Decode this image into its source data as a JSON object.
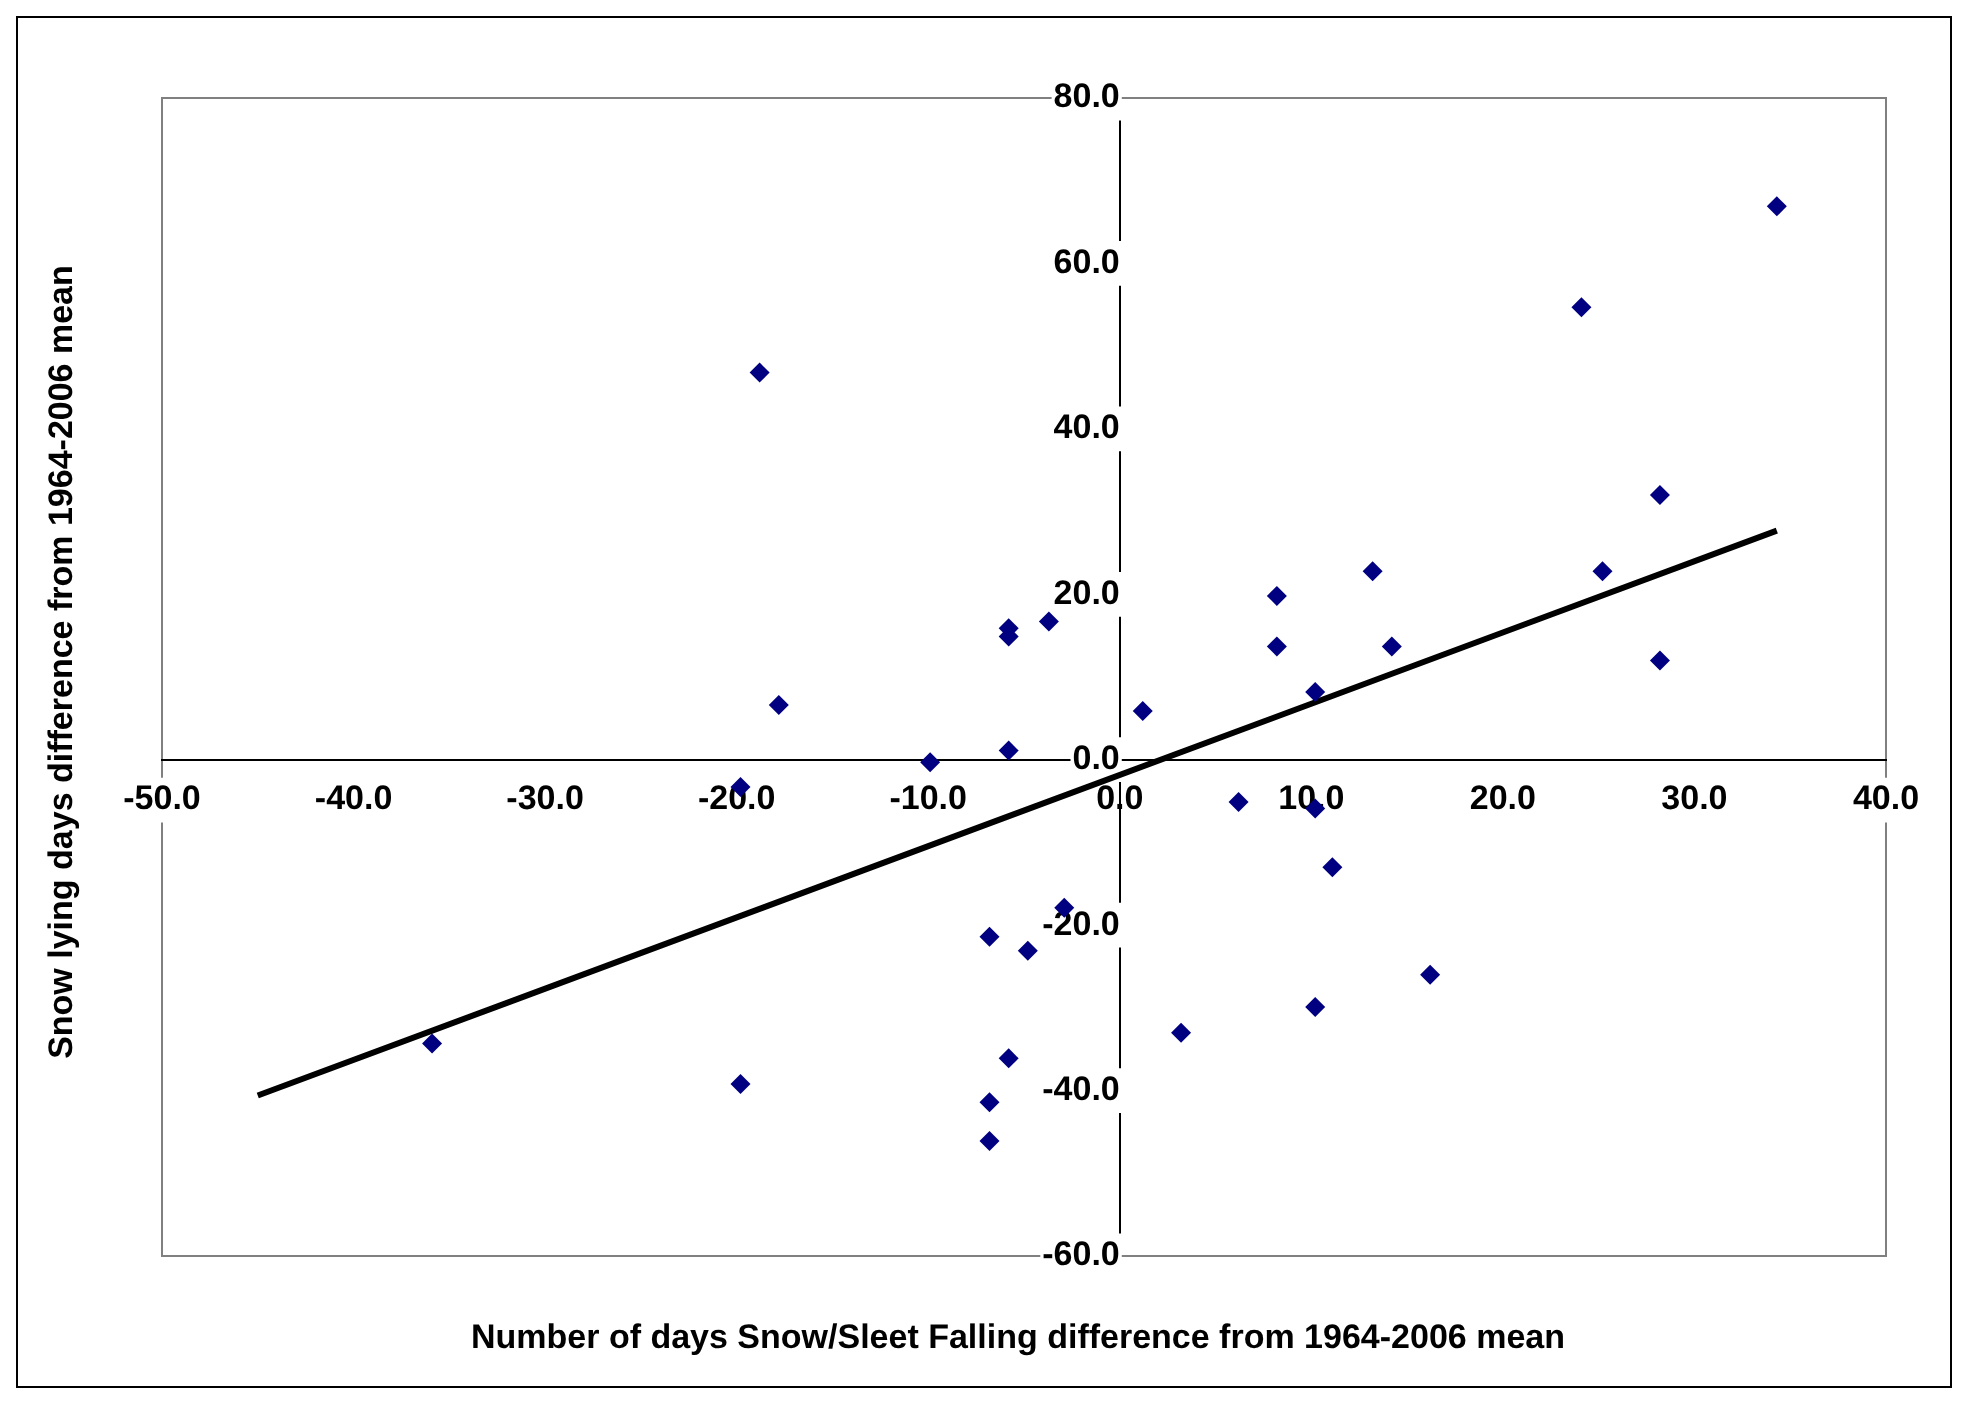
{
  "chart_data": {
    "type": "scatter",
    "xlabel": "Number of days Snow/Sleet Falling difference from 1964-2006 mean",
    "ylabel": "Snow lying days difference from 1964-2006 mean",
    "xlim": [
      -50,
      40
    ],
    "ylim": [
      -60,
      80
    ],
    "xticks": [
      {
        "value": -50,
        "label": "-50.0"
      },
      {
        "value": -40,
        "label": "-40.0"
      },
      {
        "value": -30,
        "label": "-30.0"
      },
      {
        "value": -20,
        "label": "-20.0"
      },
      {
        "value": -10,
        "label": "-10.0"
      },
      {
        "value": 0,
        "label": "0.0"
      },
      {
        "value": 10,
        "label": "10.0"
      },
      {
        "value": 20,
        "label": "20.0"
      },
      {
        "value": 30,
        "label": "30.0"
      },
      {
        "value": 40,
        "label": "40.0"
      }
    ],
    "yticks": [
      {
        "value": -60,
        "label": "-60.0"
      },
      {
        "value": -40,
        "label": "-40.0"
      },
      {
        "value": -20,
        "label": "-20.0"
      },
      {
        "value": 0,
        "label": "0.0"
      },
      {
        "value": 20,
        "label": "20.0"
      },
      {
        "value": 40,
        "label": "40.0"
      },
      {
        "value": 60,
        "label": "60.0"
      },
      {
        "value": 80,
        "label": "80.0"
      }
    ],
    "grid": false,
    "legend": false,
    "series": [
      {
        "color": "#000080",
        "marker": "diamond",
        "x": [
          -18.8,
          -17.8,
          -5.8,
          -5.8,
          -3.7,
          -9.9,
          -5.8,
          -35.9,
          -19.8,
          -19.8,
          -6.8,
          -4.8,
          -2.9,
          -5.8,
          -6.8,
          -6.8,
          34.3,
          24.1,
          28.2,
          8.2,
          13.2,
          25.2,
          8.2,
          14.2,
          28.2,
          10.2,
          1.2,
          6.2,
          10.2,
          11.1,
          16.2,
          10.2,
          3.2
        ],
        "values": [
          46.8,
          6.6,
          15.9,
          14.9,
          16.7,
          -0.3,
          1.1,
          -34.3,
          -3.3,
          -39.2,
          -21.4,
          -23.1,
          -17.9,
          -36.1,
          -41.4,
          -46.1,
          66.9,
          54.7,
          32.0,
          19.8,
          22.8,
          22.8,
          13.7,
          13.7,
          12.0,
          8.2,
          5.9,
          -5.1,
          -5.9,
          -13.0,
          -26.0,
          -29.9,
          -33.0
        ]
      },
      {
        "type": "line",
        "color": "#000000",
        "marker": "none",
        "line_style": "solid",
        "x": [
          -45,
          34.3
        ],
        "values": [
          -40.6,
          27.7
        ]
      }
    ]
  }
}
